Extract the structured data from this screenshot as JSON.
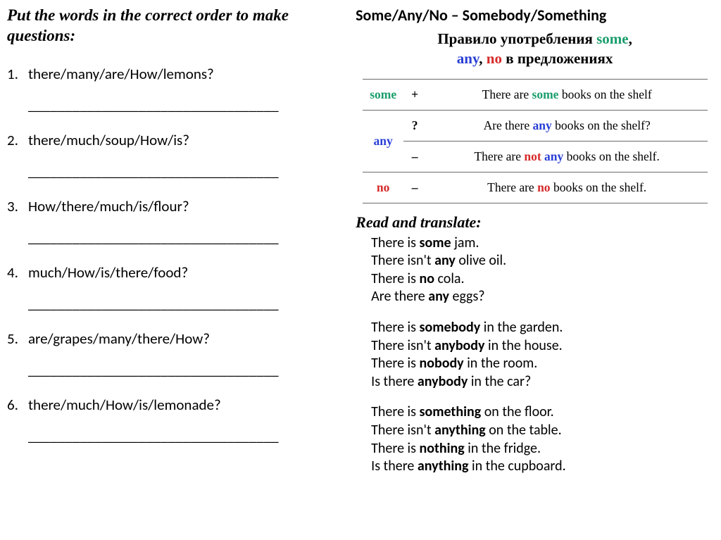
{
  "colors": {
    "text": "#000000",
    "some": "#1a9e6b",
    "any": "#2a3fd6",
    "no": "#d62a2a",
    "border": "#6a6a6a",
    "background": "#ffffff"
  },
  "left": {
    "heading": "Put the words  in the correct order to make questions:",
    "questions": [
      "there/many/are/How/lemons?",
      "there/much/soup/How/is?",
      "How/there/much/is/flour?",
      "much/How/is/there/food?",
      "are/grapes/many/there/How?",
      "there/much/How/is/lemonade?"
    ],
    "blank": "__________________________________"
  },
  "right": {
    "heading": "Some/Any/No – Somebody/Something",
    "rule_title_parts": {
      "t1": "Правило употребления ",
      "some": "some",
      "comma1": ",",
      "any": "any",
      "comma2": ", ",
      "no": "no",
      "t2": " в предложениях"
    },
    "table": {
      "rows": [
        {
          "word": "some",
          "word_color": "some",
          "sign": "+",
          "ex_pre": "There are ",
          "ex_kw": "some",
          "ex_kw_color": "some",
          "ex_post": " books on the shelf"
        },
        {
          "word": "",
          "sign": "?",
          "ex_pre": "Are there ",
          "ex_kw": "any",
          "ex_kw_color": "any",
          "ex_post": " books on the shelf?"
        },
        {
          "word": "any",
          "word_color": "any",
          "sign": "–",
          "ex_pre": "There are ",
          "ex_kw": "not any",
          "ex_kw_two": true,
          "ex_post": " books on the shelf."
        },
        {
          "word": "no",
          "word_color": "no",
          "sign": "–",
          "ex_pre": "There are ",
          "ex_kw": "no",
          "ex_kw_color": "no",
          "ex_post": " books on the shelf."
        }
      ]
    },
    "subhead": "Read and translate:",
    "block1": [
      {
        "pre": "There is ",
        "kw": "some",
        "post": " jam."
      },
      {
        "pre": "There isn't ",
        "kw": "any",
        "post": " olive oil."
      },
      {
        "pre": "There is ",
        "kw": "no",
        "post": " cola."
      },
      {
        "pre": "Are there ",
        "kw": "any",
        "post": " eggs?"
      }
    ],
    "block2": [
      {
        "pre": "There is ",
        "kw": "somebody",
        "post": " in the garden."
      },
      {
        "pre": "There isn't ",
        "kw": "anybody",
        "post": " in the house."
      },
      {
        "pre": "There is ",
        "kw": "nobody",
        "post": " in the room."
      },
      {
        "pre": "Is there ",
        "kw": "anybody",
        "post": " in the car?"
      }
    ],
    "block3": [
      {
        "pre": "There is ",
        "kw": "something",
        "post": " on the floor."
      },
      {
        "pre": "There isn't ",
        "kw": "anything",
        "post": " on the table."
      },
      {
        "pre": "There is ",
        "kw": "nothing",
        "post": " in the fridge."
      },
      {
        "pre": "Is there ",
        "kw": "anything",
        "post": " in the cupboard."
      }
    ]
  }
}
